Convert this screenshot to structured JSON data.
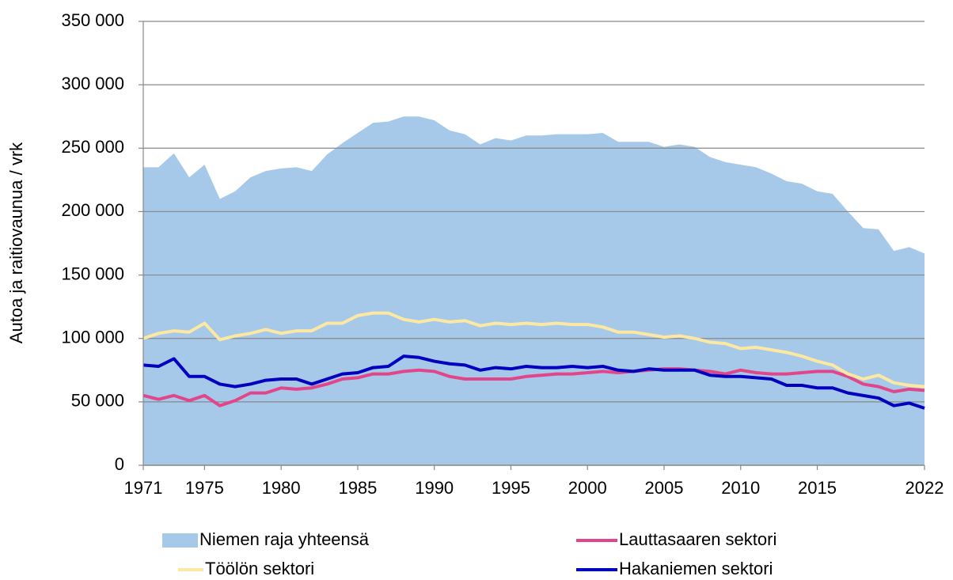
{
  "chart_data": {
    "type": "line",
    "ylabel": "Autoa ja raitiovaunua / vrk",
    "x": [
      1971,
      1972,
      1973,
      1974,
      1975,
      1976,
      1977,
      1978,
      1979,
      1980,
      1981,
      1982,
      1983,
      1984,
      1985,
      1986,
      1987,
      1988,
      1989,
      1990,
      1991,
      1992,
      1993,
      1994,
      1995,
      1996,
      1997,
      1998,
      1999,
      2000,
      2001,
      2002,
      2003,
      2004,
      2005,
      2006,
      2007,
      2008,
      2009,
      2010,
      2011,
      2012,
      2013,
      2014,
      2015,
      2016,
      2017,
      2018,
      2019,
      2020,
      2021,
      2022
    ],
    "xlim": [
      1971,
      2022
    ],
    "xticks": [
      1971,
      1975,
      1980,
      1985,
      1990,
      1995,
      2000,
      2005,
      2010,
      2015,
      2022
    ],
    "ylim": [
      0,
      350000
    ],
    "yticks": [
      0,
      {
        "value": 50000,
        "label": "50 000"
      },
      {
        "value": 100000,
        "label": "100 000"
      },
      {
        "value": 150000,
        "label": "150 000"
      },
      {
        "value": 200000,
        "label": "200 000"
      },
      {
        "value": 250000,
        "label": "250 000"
      },
      {
        "value": 300000,
        "label": "300 000"
      },
      {
        "value": 350000,
        "label": "350 000"
      }
    ],
    "grid": true,
    "legend": "bottom",
    "series": [
      {
        "name": "Niemen raja yhteensä",
        "kind": "area",
        "color": "#a6c9ea",
        "values": [
          235000,
          235000,
          246000,
          227000,
          237000,
          210000,
          216000,
          227000,
          232000,
          234000,
          235000,
          232000,
          245000,
          254000,
          262000,
          270000,
          271000,
          275000,
          275000,
          272000,
          264000,
          261000,
          253000,
          258000,
          256000,
          260000,
          260000,
          261000,
          261000,
          261000,
          262000,
          255000,
          255000,
          255000,
          251000,
          253000,
          251000,
          243000,
          239000,
          237000,
          235000,
          230000,
          224000,
          222000,
          216000,
          214000,
          200000,
          187000,
          186000,
          169000,
          172000,
          167000
        ]
      },
      {
        "name": "Lauttasaaren sektori",
        "kind": "line",
        "color": "#e2468a",
        "values": [
          55000,
          52000,
          55000,
          51000,
          55000,
          47000,
          51000,
          57000,
          57000,
          61000,
          60000,
          61000,
          64000,
          68000,
          69000,
          72000,
          72000,
          74000,
          75000,
          74000,
          70000,
          68000,
          68000,
          68000,
          68000,
          70000,
          71000,
          72000,
          72000,
          73000,
          74000,
          73000,
          74000,
          75000,
          76000,
          76000,
          75000,
          74000,
          72000,
          75000,
          73000,
          72000,
          72000,
          73000,
          74000,
          74000,
          70000,
          64000,
          62000,
          58000,
          60000,
          59000
        ]
      },
      {
        "name": "Töölön sektori",
        "kind": "line",
        "color": "#fde8a2",
        "values": [
          100000,
          104000,
          106000,
          105000,
          112000,
          99000,
          102000,
          104000,
          107000,
          104000,
          106000,
          106000,
          112000,
          112000,
          118000,
          120000,
          120000,
          115000,
          113000,
          115000,
          113000,
          114000,
          110000,
          112000,
          111000,
          112000,
          111000,
          112000,
          111000,
          111000,
          109000,
          105000,
          105000,
          103000,
          101000,
          102000,
          100000,
          97000,
          96000,
          92000,
          93000,
          91000,
          89000,
          86000,
          82000,
          79000,
          72000,
          68000,
          71000,
          65000,
          63000,
          62000
        ]
      },
      {
        "name": "Hakaniemen sektori",
        "kind": "line",
        "color": "#0000bf",
        "values": [
          79000,
          78000,
          84000,
          70000,
          70000,
          64000,
          62000,
          64000,
          67000,
          68000,
          68000,
          64000,
          68000,
          72000,
          73000,
          77000,
          78000,
          86000,
          85000,
          82000,
          80000,
          79000,
          75000,
          77000,
          76000,
          78000,
          77000,
          77000,
          78000,
          77000,
          78000,
          75000,
          74000,
          76000,
          75000,
          75000,
          75000,
          71000,
          70000,
          70000,
          69000,
          68000,
          63000,
          63000,
          61000,
          61000,
          57000,
          55000,
          53000,
          47000,
          49000,
          45000
        ]
      }
    ]
  }
}
